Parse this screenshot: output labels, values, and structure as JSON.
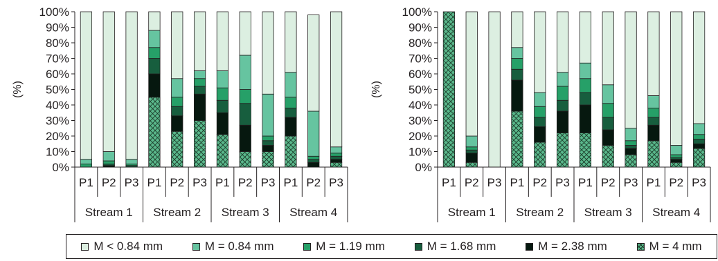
{
  "chart_data": [
    {
      "type": "bar",
      "stacked": true,
      "ylabel": "(%)",
      "ylim": [
        0,
        100
      ],
      "yticks": [
        "0%",
        "10%",
        "20%",
        "30%",
        "40%",
        "50%",
        "60%",
        "70%",
        "80%",
        "90%",
        "100%"
      ],
      "groups": [
        "Stream 1",
        "Stream 2",
        "Stream 3",
        "Stream 4"
      ],
      "categories": [
        "P1",
        "P2",
        "P3",
        "P1",
        "P2",
        "P3",
        "P1",
        "P2",
        "P3",
        "P1",
        "P2",
        "P3"
      ],
      "series": [
        {
          "name": "M = 4 mm",
          "values": [
            0,
            0,
            0,
            45,
            23,
            30,
            21,
            10,
            10,
            20,
            0,
            3
          ]
        },
        {
          "name": "M = 2.38 mm",
          "values": [
            0,
            1,
            0,
            15,
            10,
            17,
            14,
            17,
            4,
            12,
            3,
            2
          ]
        },
        {
          "name": "M = 1.68 mm",
          "values": [
            0,
            1,
            1,
            10,
            6,
            5,
            8,
            14,
            3,
            6,
            2,
            2
          ]
        },
        {
          "name": "M = 1.19 mm",
          "values": [
            2,
            2,
            1,
            7,
            6,
            5,
            8,
            9,
            3,
            7,
            2,
            2
          ]
        },
        {
          "name": "M = 0.84 mm",
          "values": [
            3,
            6,
            3,
            11,
            12,
            5,
            11,
            22,
            27,
            16,
            29,
            4
          ]
        },
        {
          "name": "M < 0.84 mm",
          "values": [
            95,
            90,
            95,
            12,
            43,
            38,
            38,
            28,
            53,
            39,
            62,
            87
          ]
        }
      ]
    },
    {
      "type": "bar",
      "stacked": true,
      "ylabel": "(%)",
      "ylim": [
        0,
        100
      ],
      "yticks": [
        "0%",
        "10%",
        "20%",
        "30%",
        "40%",
        "50%",
        "60%",
        "70%",
        "80%",
        "90%",
        "100%"
      ],
      "groups": [
        "Stream 1",
        "Stream 2",
        "Stream 3",
        "Stream 4"
      ],
      "categories": [
        "P1",
        "P2",
        "P3",
        "P1",
        "P2",
        "P3",
        "P1",
        "P2",
        "P3",
        "P1",
        "P2",
        "P3"
      ],
      "series": [
        {
          "name": "M = 4 mm",
          "values": [
            100,
            3,
            0,
            36,
            16,
            22,
            22,
            14,
            8,
            17,
            3,
            12
          ]
        },
        {
          "name": "M = 2.38 mm",
          "values": [
            0,
            6,
            0,
            20,
            10,
            14,
            18,
            10,
            4,
            10,
            2,
            3
          ]
        },
        {
          "name": "M = 1.68 mm",
          "values": [
            0,
            2,
            0,
            7,
            6,
            7,
            8,
            8,
            2,
            5,
            1,
            3
          ]
        },
        {
          "name": "M = 1.19 mm",
          "values": [
            0,
            2,
            0,
            7,
            7,
            9,
            9,
            9,
            3,
            6,
            2,
            3
          ]
        },
        {
          "name": "M = 0.84 mm",
          "values": [
            0,
            7,
            0,
            7,
            9,
            9,
            10,
            12,
            8,
            8,
            6,
            7
          ]
        },
        {
          "name": "M < 0.84 mm",
          "values": [
            0,
            80,
            100,
            23,
            52,
            39,
            33,
            47,
            75,
            54,
            86,
            72
          ]
        }
      ]
    }
  ],
  "legend": {
    "items": [
      {
        "label": "M < 0.84 mm",
        "color": "#dcefe1",
        "pattern": false
      },
      {
        "label": "M = 0.84 mm",
        "color": "#66c4a0",
        "pattern": false
      },
      {
        "label": "M = 1.19 mm",
        "color": "#26a068",
        "pattern": false
      },
      {
        "label": "M = 1.68 mm",
        "color": "#175e3e",
        "pattern": false
      },
      {
        "label": "M = 2.38 mm",
        "color": "#06180f",
        "pattern": false
      },
      {
        "label": "M = 4 mm",
        "color": "#5ab88c",
        "pattern": true
      }
    ]
  }
}
